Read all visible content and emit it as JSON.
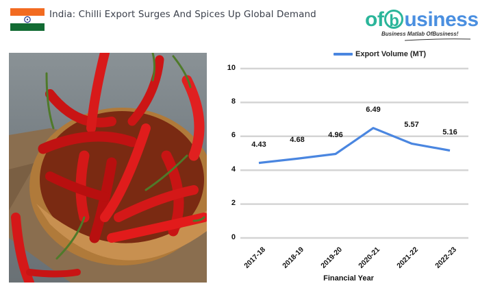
{
  "header": {
    "title": "India: Chilli Export Surges And Spices Up Global Demand",
    "flag": {
      "top": "#f26b21",
      "middle": "#ffffff",
      "bottom": "#126b33",
      "chakra": "#2b3a8c"
    }
  },
  "logo": {
    "text_of": "of",
    "text_b": "b",
    "text_usiness": "usiness",
    "tagline": "Business Matlab OfBusiness!",
    "colors": {
      "green": "#2bb59a",
      "blue": "#4a8fe0"
    }
  },
  "photo": {
    "alt": "red chillies in a woven basket on burlap"
  },
  "chart_data": {
    "type": "line",
    "title": "",
    "categories": [
      "2017-18",
      "2018-19",
      "2019-20",
      "2020-21",
      "2021-22",
      "2022-23"
    ],
    "series": [
      {
        "name": "Export Volume (MT)",
        "values": [
          4.43,
          4.68,
          4.96,
          6.49,
          5.57,
          5.16
        ],
        "color": "#4a86e0"
      }
    ],
    "data_labels": [
      "4.43",
      "4.68",
      "4.96",
      "6.49",
      "5.57",
      "5.16"
    ],
    "xlabel": "Financial Year",
    "ylabel": "",
    "ylim": [
      0,
      10
    ],
    "yticks": [
      "0",
      "2",
      "4",
      "6",
      "8",
      "10"
    ],
    "grid": true,
    "legend_position": "top"
  }
}
